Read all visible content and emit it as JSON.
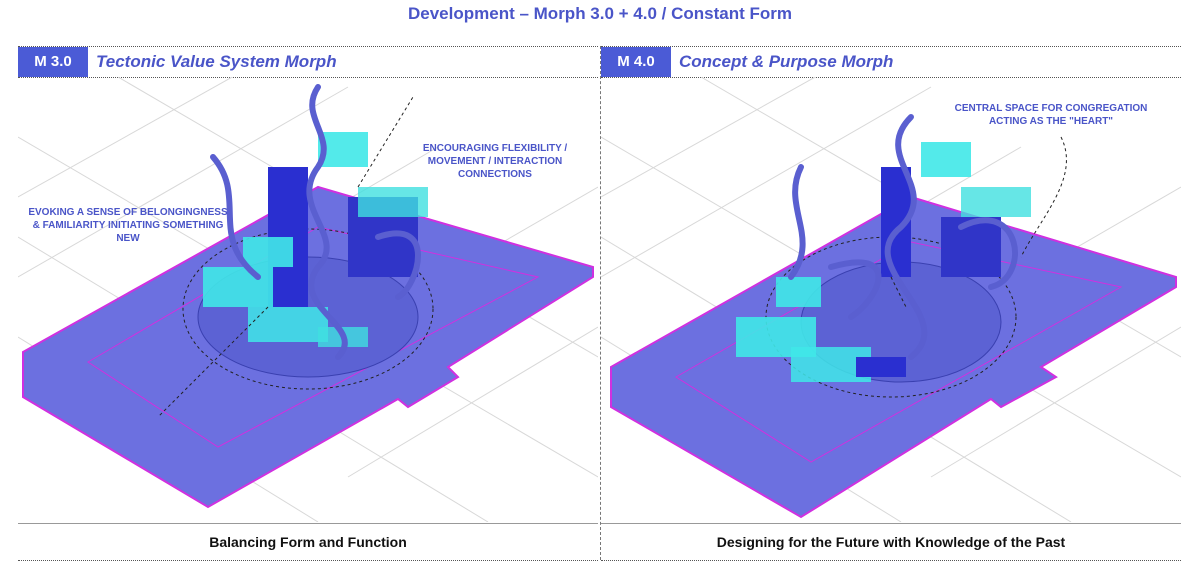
{
  "title": "Development – Morph 3.0 + 4.0 / Constant Form",
  "colors": {
    "accent": "#4b5bd6",
    "plate": "#6c70e0",
    "edge": "#d030e0",
    "cyan": "#40e8e8",
    "ribbon": "#5a5fd0"
  },
  "panels": [
    {
      "tag": "M 3.0",
      "heading": "Tectonic Value System Morph",
      "notes": [
        "ENCOURAGING FLEXIBILITY / MOVEMENT / INTERACTION CONNECTIONS",
        "EVOKING A SENSE OF BELONGINGNESS & FAMILIARITY INITIATING SOMETHING NEW"
      ],
      "caption": "Balancing Form and Function"
    },
    {
      "tag": "M 4.0",
      "heading": "Concept & Purpose Morph",
      "notes": [
        "CENTRAL SPACE FOR CONGREGATION ACTING AS THE \"HEART\""
      ],
      "caption": "Designing for the Future with Knowledge of the Past"
    }
  ]
}
